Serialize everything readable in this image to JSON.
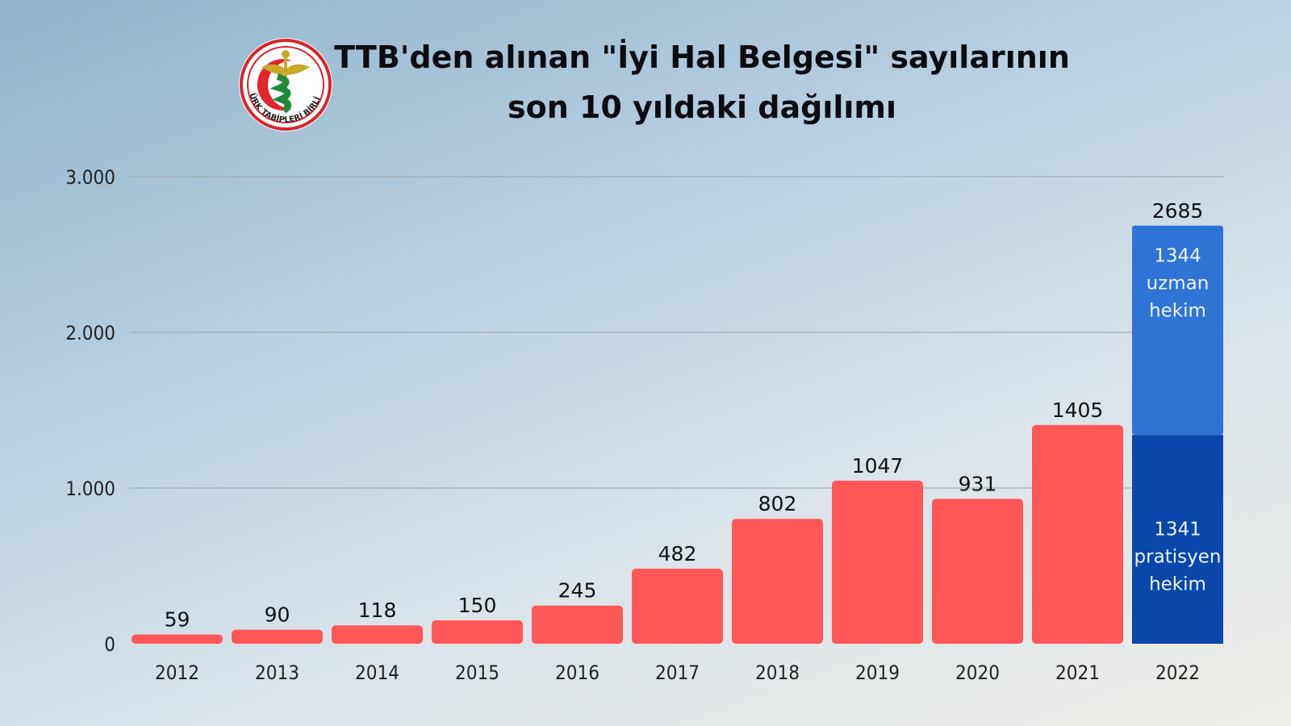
{
  "logo": {
    "text": "TÜRK TABİPLERİ BİRLİĞİ"
  },
  "title_line1": "TTB'den alınan \"İyi Hal Belgesi\" sayılarının",
  "title_line2": "son 10 yıldaki dağılımı",
  "chart_data": {
    "type": "bar",
    "categories": [
      "2012",
      "2013",
      "2014",
      "2015",
      "2016",
      "2017",
      "2018",
      "2019",
      "2020",
      "2021",
      "2022"
    ],
    "values": [
      59,
      90,
      118,
      150,
      245,
      482,
      802,
      1047,
      931,
      1405,
      2685
    ],
    "value_labels": [
      "59",
      "90",
      "118",
      "150",
      "245",
      "482",
      "802",
      "1047",
      "931",
      "1405",
      "2685"
    ],
    "stacked_2022": [
      {
        "name": "pratisyen hekim",
        "value": 1341,
        "label_lines": [
          "1341",
          "pratisyen",
          "hekim"
        ],
        "color": "#0a47aa"
      },
      {
        "name": "uzman hekim",
        "value": 1344,
        "label_lines": [
          "1344",
          "uzman",
          "hekim"
        ],
        "color": "#2e74d4"
      }
    ],
    "bar_color": "#ff5757",
    "ylim": [
      0,
      3000
    ],
    "yticks": [
      0,
      1000,
      2000,
      3000
    ],
    "ytick_labels": [
      "0",
      "1.000",
      "2.000",
      "3.000"
    ],
    "grid": true,
    "xlabel": "",
    "ylabel": ""
  }
}
